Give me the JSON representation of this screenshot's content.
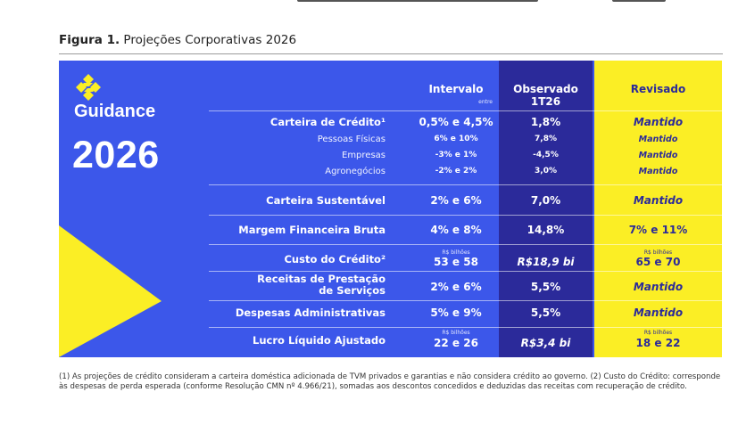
{
  "figure": {
    "label": "Figura 1.",
    "title": "Projeções Corporativas 2026"
  },
  "panel": {
    "brand_word": "Guidance",
    "year": "2026",
    "colors": {
      "blue": "#3c57ea",
      "dark_blue": "#2b2a9a",
      "yellow": "#fbee25"
    }
  },
  "headers": {
    "intervalo": "Intervalo",
    "intervalo_sub": "entre",
    "observado_line1": "Observado",
    "observado_line2": "1T26",
    "revisado": "Revisado"
  },
  "rows": [
    {
      "label": "Carteira de Crédito¹",
      "intervalo": "0,5% e 4,5%",
      "observado": "1,8%",
      "revisado": "Mantido"
    },
    {
      "label": "Pessoas Físicas",
      "intervalo": "6% e 10%",
      "observado": "7,8%",
      "revisado": "Mantido"
    },
    {
      "label": "Empresas",
      "intervalo": "-3% e 1%",
      "observado": "-4,5%",
      "revisado": "Mantido"
    },
    {
      "label": "Agronegócios",
      "intervalo": "-2% e 2%",
      "observado": "3,0%",
      "revisado": "Mantido"
    },
    {
      "label": "Carteira Sustentável",
      "intervalo": "2% e 6%",
      "observado": "7,0%",
      "revisado": "Mantido"
    },
    {
      "label": "Margem Financeira Bruta",
      "intervalo": "4% e 8%",
      "observado": "14,8%",
      "revisado": "7% e 11%"
    },
    {
      "label": "Custo do Crédito²",
      "intervalo_unit": "R$ bilhões",
      "intervalo": "53 e 58",
      "observado": "R$18,9 bi",
      "revisado_unit": "R$ bilhões",
      "revisado": "65 e 70"
    },
    {
      "label_line1": "Receitas de Prestação",
      "label_line2": "de Serviços",
      "intervalo": "2% e 6%",
      "observado": "5,5%",
      "revisado": "Mantido"
    },
    {
      "label": "Despesas Administrativas",
      "intervalo": "5% e 9%",
      "observado": "5,5%",
      "revisado": "Mantido"
    },
    {
      "label": "Lucro Líquido Ajustado",
      "intervalo_unit": "R$ bilhões",
      "intervalo": "22 e 26",
      "observado": "R$3,4 bi",
      "revisado_unit": "R$ bilhões",
      "revisado": "18 e 22"
    }
  ],
  "footnote": "(1) As projeções de crédito consideram a carteira doméstica adicionada de TVM privados e garantias e não considera crédito ao governo. (2) Custo do Crédito: corresponde às despesas de perda esperada (conforme Resolução CMN nº 4.966/21), somadas aos descontos concedidos e deduzidas das receitas com recuperação de crédito."
}
